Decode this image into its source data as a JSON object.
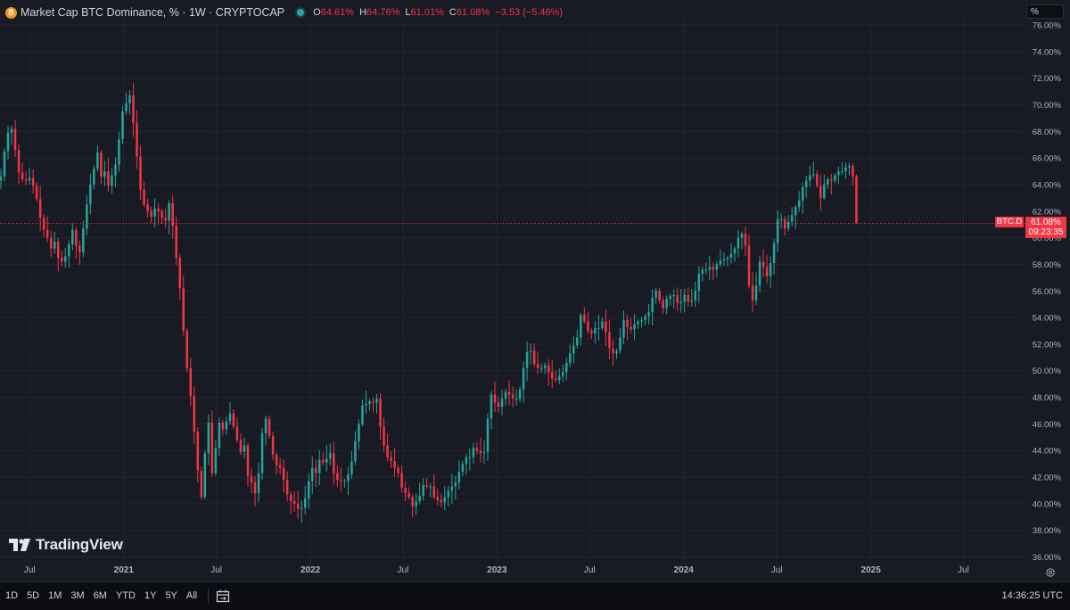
{
  "header": {
    "coin_letter": "B",
    "title": "Market Cap BTC Dominance, % · 1W · CRYPTOCAP",
    "ohlc": [
      {
        "label": "O",
        "value": "64.61%"
      },
      {
        "label": "H",
        "value": "64.76%"
      },
      {
        "label": "L",
        "value": "61.01%"
      },
      {
        "label": "C",
        "value": "61.08%"
      },
      {
        "label": "",
        "value": "−3.53 (−5.46%)"
      }
    ]
  },
  "unit_box": "%",
  "price_tag": {
    "value": "61.08%",
    "countdown": "09:23:35",
    "symbol": "BTC.D"
  },
  "logo_text": "TradingView",
  "bottom_bar": {
    "ranges": [
      "1D",
      "5D",
      "1M",
      "3M",
      "6M",
      "YTD",
      "1Y",
      "5Y",
      "All"
    ],
    "time": "14:36:25 UTC"
  },
  "colors": {
    "up": "#26a69a",
    "down": "#f23645",
    "background": "#181a24",
    "grid": "#232632"
  },
  "icons": {
    "logo": "tradingview-logo-icon",
    "calendar": "calendar-range-icon",
    "settings": "gear-icon"
  },
  "chart_data": {
    "type": "candlestick",
    "ylabel": "%",
    "ylim": [
      35.5,
      76.4
    ],
    "y_ticks": [
      "76.00%",
      "74.00%",
      "72.00%",
      "70.00%",
      "68.00%",
      "66.00%",
      "64.00%",
      "62.00%",
      "60.00%",
      "58.00%",
      "56.00%",
      "54.00%",
      "52.00%",
      "50.00%",
      "48.00%",
      "46.00%",
      "44.00%",
      "42.00%",
      "40.00%",
      "38.00%",
      "36.00%"
    ],
    "x_ticks": [
      "Jul",
      "2021",
      "Jul",
      "2022",
      "Jul",
      "2023",
      "Jul",
      "2024",
      "Jul",
      "2025",
      "Jul"
    ],
    "x_range": [
      "2020-05-04",
      "2025-08-25"
    ],
    "last_close": 61.08,
    "series": [
      {
        "values": [
          64.6,
          66.5,
          67.9,
          68.2,
          66.6,
          64.9,
          64.4,
          64.3,
          64.5,
          63.9,
          62.9,
          61.5,
          60.6,
          60.0,
          59.2,
          59.7,
          58.5,
          58.2,
          58.6,
          59.5,
          60.6,
          59.4,
          58.9,
          60.7,
          62.5,
          64.0,
          65.2,
          66.4,
          64.6,
          65.0,
          63.9,
          64.7,
          65.5,
          67.4,
          69.5,
          70.1,
          70.7,
          68.6,
          66.1,
          63.6,
          62.5,
          62.0,
          61.6,
          62.2,
          62.0,
          61.5,
          61.3,
          62.6,
          60.9,
          58.5,
          56.2,
          53.0,
          50.2,
          48.1,
          45.4,
          42.5,
          40.5,
          43.8,
          46.1,
          42.3,
          44.2,
          46.1,
          45.6,
          46.2,
          46.8,
          45.8,
          44.8,
          43.9,
          44.4,
          42.1,
          41.6,
          40.8,
          42.3,
          45.3,
          46.4,
          45.1,
          43.7,
          42.9,
          42.7,
          41.8,
          40.7,
          40.2,
          40.0,
          39.6,
          39.7,
          40.4,
          41.7,
          42.7,
          42.3,
          43.3,
          43.1,
          43.4,
          43.8,
          42.3,
          41.8,
          41.7,
          41.7,
          42.2,
          43.2,
          44.7,
          46.0,
          47.4,
          47.5,
          47.7,
          47.6,
          47.9,
          45.8,
          44.4,
          43.5,
          43.2,
          42.7,
          42.3,
          41.2,
          40.8,
          40.5,
          39.8,
          40.2,
          40.6,
          41.4,
          41.3,
          41.3,
          40.5,
          40.3,
          40.1,
          40.5,
          41.0,
          41.3,
          41.6,
          42.4,
          43.0,
          43.5,
          43.5,
          44.2,
          44.0,
          43.8,
          43.9,
          46.4,
          48.2,
          47.6,
          47.3,
          47.9,
          48.4,
          48.2,
          47.9,
          47.9,
          48.6,
          50.2,
          51.4,
          51.5,
          50.5,
          50.2,
          50.2,
          50.4,
          49.9,
          49.4,
          49.3,
          49.6,
          49.9,
          50.6,
          51.3,
          51.9,
          52.5,
          54.2,
          53.7,
          53.0,
          52.8,
          53.2,
          53.2,
          53.7,
          52.9,
          51.7,
          51.3,
          51.5,
          52.5,
          53.8,
          53.3,
          53.1,
          53.5,
          53.7,
          53.8,
          54.1,
          54.4,
          55.5,
          56.0,
          55.3,
          54.7,
          55.4,
          55.6,
          55.7,
          55.1,
          55.2,
          55.7,
          55.2,
          55.3,
          56.0,
          57.3,
          57.6,
          57.6,
          57.8,
          57.6,
          58.0,
          58.3,
          58.4,
          58.5,
          58.8,
          59.2,
          60.0,
          60.3,
          59.4,
          56.4,
          55.3,
          56.4,
          58.2,
          57.8,
          57.1,
          58.1,
          59.6,
          61.4,
          61.4,
          60.7,
          61.2,
          61.7,
          62.3,
          62.8,
          63.8,
          64.3,
          64.7,
          64.8,
          63.9,
          63.0,
          64.0,
          64.4,
          64.3,
          64.7,
          65.0,
          65.0,
          65.3,
          65.4,
          64.6,
          61.08
        ]
      }
    ]
  }
}
